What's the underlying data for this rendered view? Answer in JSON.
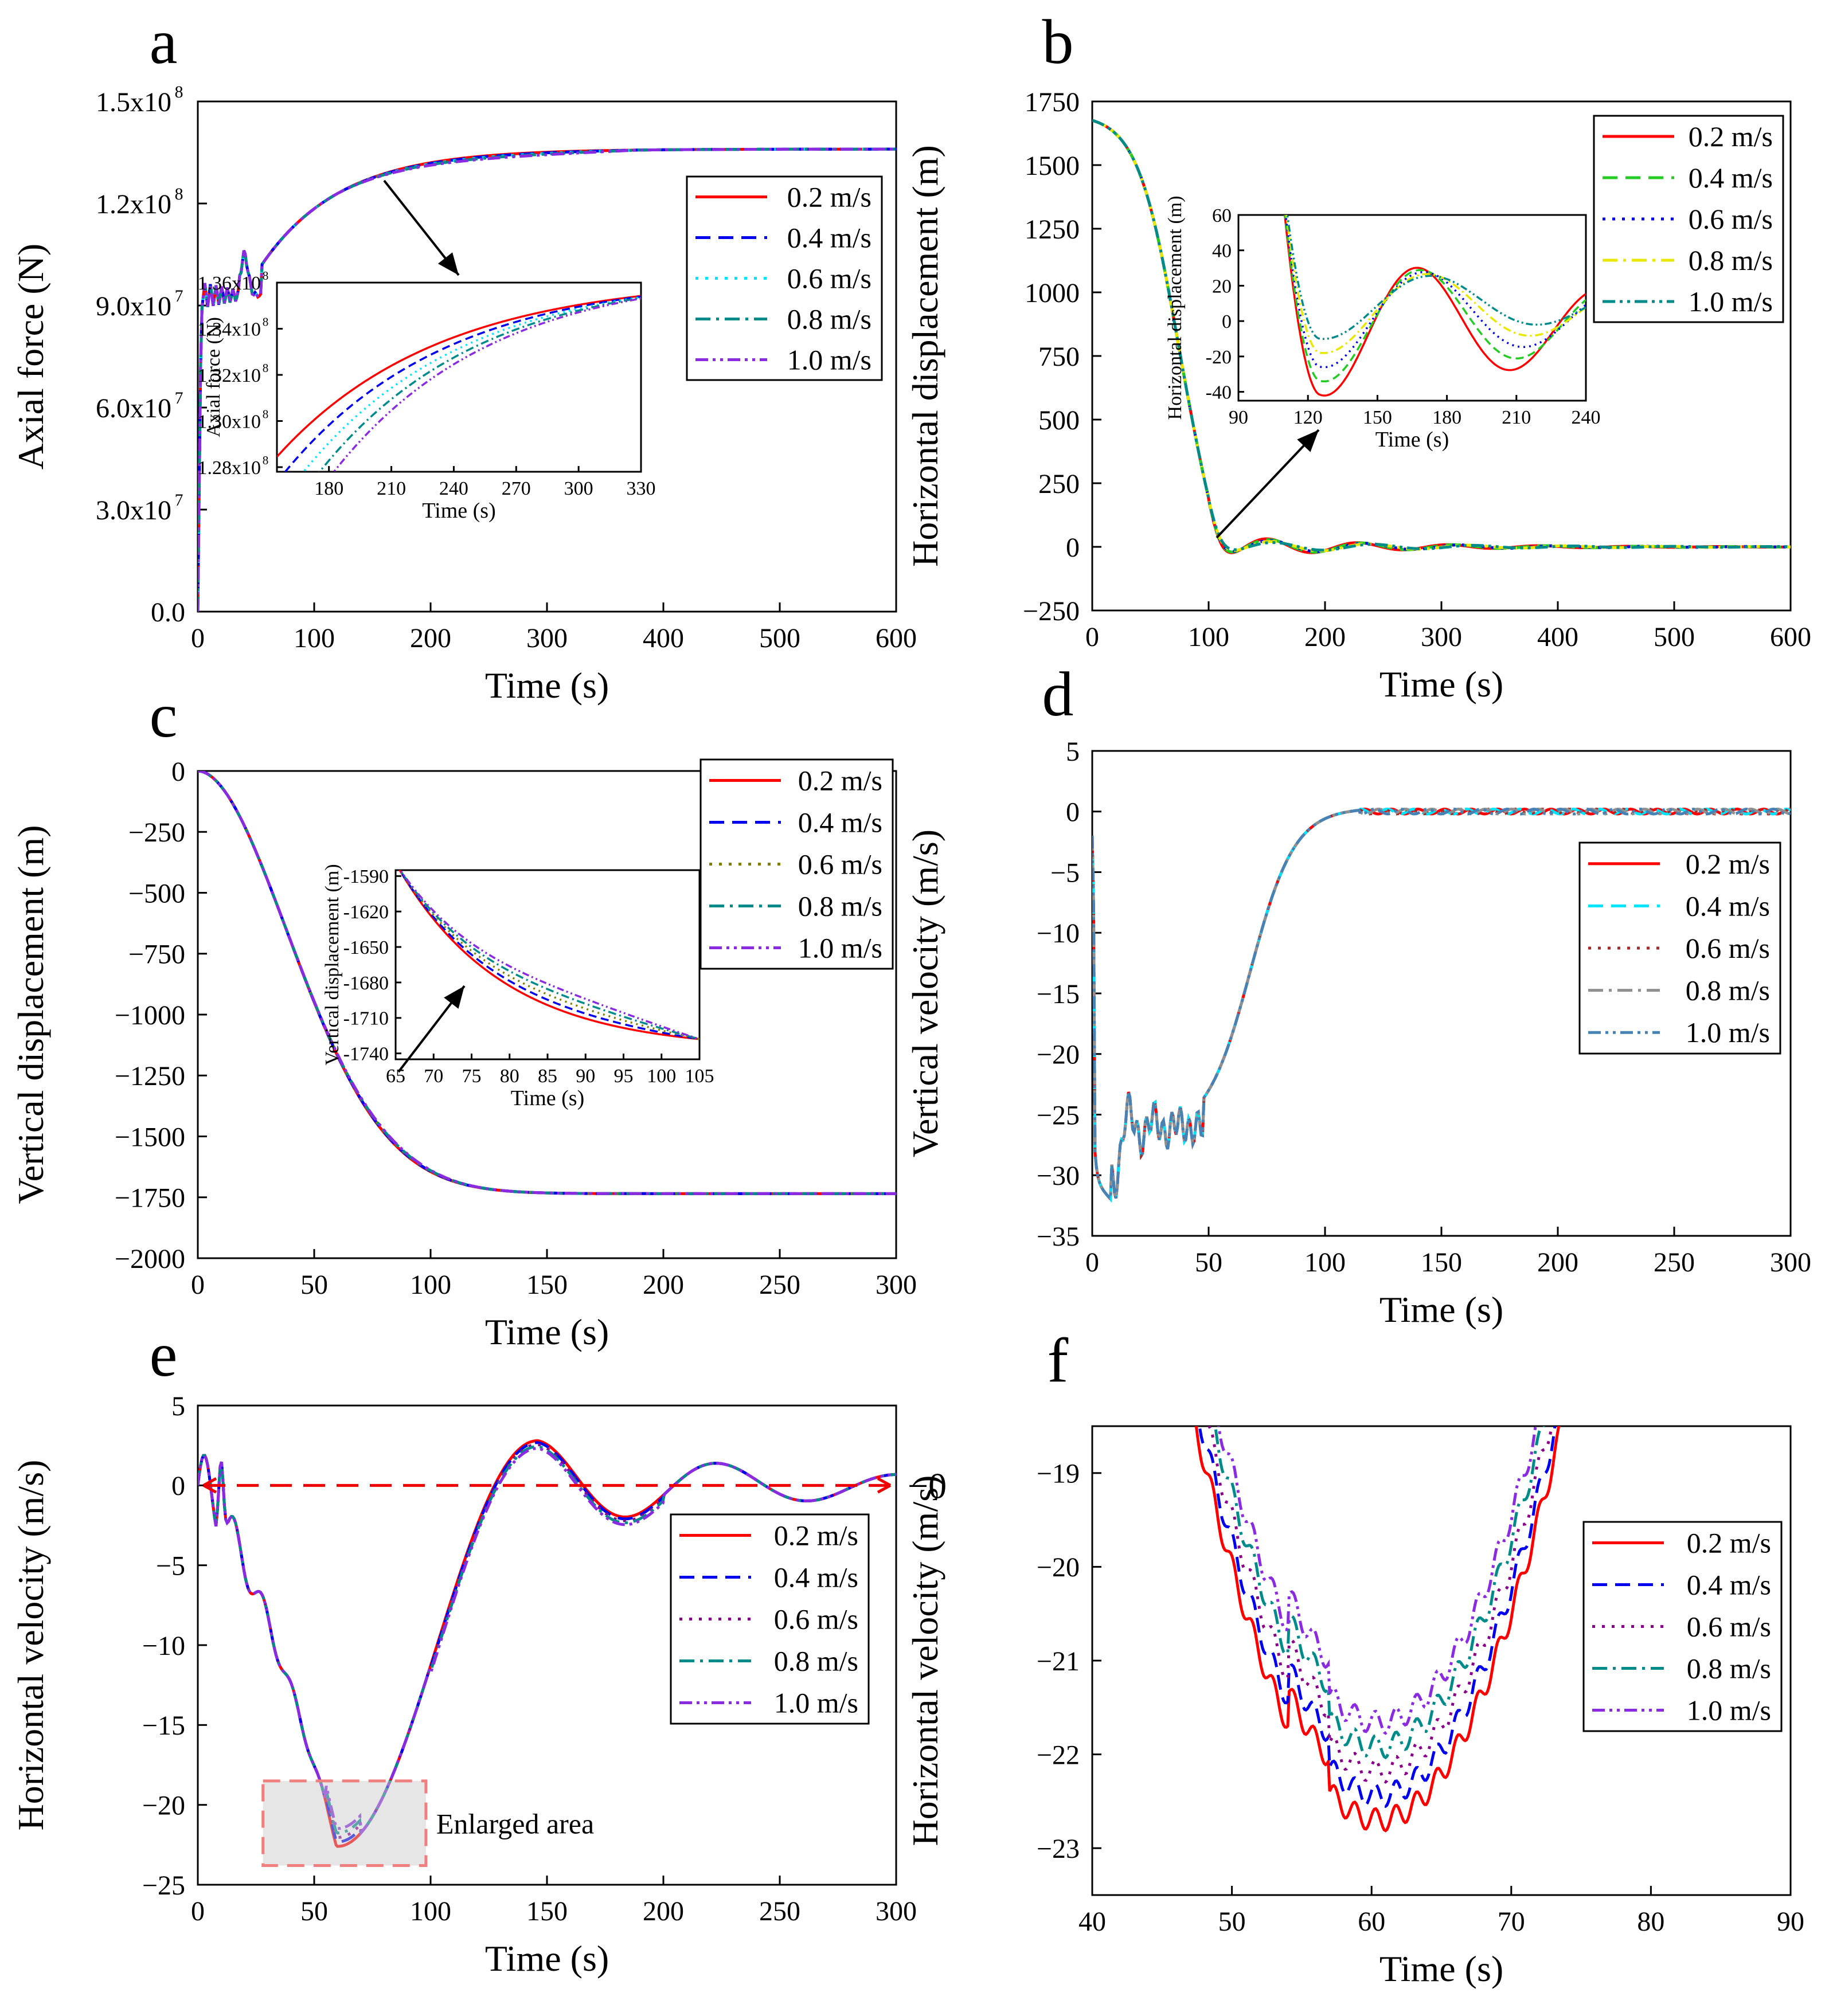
{
  "chart_data": [
    {
      "id": "a",
      "panel_label": "a",
      "type": "line",
      "title": "",
      "xlabel": "Time (s)",
      "ylabel": "Axial force (N)",
      "xlim": [
        0,
        600
      ],
      "ylim": [
        0,
        150000000
      ],
      "x_ticks": [
        0,
        100,
        200,
        300,
        400,
        500,
        600
      ],
      "y_ticks": [
        0,
        30000000,
        60000000,
        90000000,
        120000000,
        150000000
      ],
      "y_tick_labels": [
        "0.0",
        "3.0x10",
        "6.0x10",
        "9.0x10",
        "1.2x10",
        "1.5x10"
      ],
      "y_tick_exps": [
        "",
        "7",
        "7",
        "7",
        "8",
        "8"
      ],
      "legend": {
        "position": "right",
        "entries": [
          "0.2 m/s",
          "0.4 m/s",
          "0.6 m/s",
          "0.8 m/s",
          "1.0 m/s"
        ]
      },
      "series": [
        {
          "name": "0.2 m/s",
          "color": "#ff0000",
          "dash": "solid"
        },
        {
          "name": "0.4 m/s",
          "color": "#0000ee",
          "dash": "dash"
        },
        {
          "name": "0.6 m/s",
          "color": "#00e5ff",
          "dash": "dot"
        },
        {
          "name": "0.8 m/s",
          "color": "#008b8b",
          "dash": "dashdot"
        },
        {
          "name": "1.0 m/s",
          "color": "#8a2be2",
          "dash": "dashdotdot"
        }
      ],
      "inset": {
        "xlabel": "Time (s)",
        "ylabel": "Axial force (N)",
        "xlim": [
          155,
          330
        ],
        "ylim": [
          127800000,
          136000000
        ],
        "x_ticks": [
          180,
          210,
          240,
          270,
          300,
          330
        ],
        "y_ticks": [
          128000000,
          130000000,
          132000000,
          134000000,
          136000000
        ],
        "y_tick_labels": [
          "1.28x10",
          "1.30x10",
          "1.32x10",
          "1.34x10",
          "1.36x10"
        ],
        "y_tick_exps": [
          "8",
          "8",
          "8",
          "8",
          "8"
        ]
      }
    },
    {
      "id": "b",
      "panel_label": "b",
      "type": "line",
      "title": "",
      "xlabel": "Time (s)",
      "ylabel": "Horizontal displacement (m)",
      "xlim": [
        0,
        600
      ],
      "ylim": [
        -250,
        1750
      ],
      "x_ticks": [
        0,
        100,
        200,
        300,
        400,
        500,
        600
      ],
      "y_ticks": [
        -250,
        0,
        250,
        500,
        750,
        1000,
        1250,
        1500,
        1750
      ],
      "y_tick_labels": [
        "−250",
        "0",
        "250",
        "500",
        "750",
        "1000",
        "1250",
        "1500",
        "1750"
      ],
      "legend": {
        "position": "top-right",
        "entries": [
          "0.2 m/s",
          "0.4 m/s",
          "0.6 m/s",
          "0.8 m/s",
          "1.0 m/s"
        ]
      },
      "series": [
        {
          "name": "0.2 m/s",
          "color": "#ff0000",
          "dash": "solid"
        },
        {
          "name": "0.4 m/s",
          "color": "#22cc22",
          "dash": "dash"
        },
        {
          "name": "0.6 m/s",
          "color": "#0000ee",
          "dash": "dot"
        },
        {
          "name": "0.8 m/s",
          "color": "#e8e800",
          "dash": "dashdot"
        },
        {
          "name": "1.0 m/s",
          "color": "#008b8b",
          "dash": "dashdotdot"
        }
      ],
      "inset": {
        "xlabel": "Time (s)",
        "ylabel": "Horizontal displacement (m)",
        "xlim": [
          90,
          240
        ],
        "ylim": [
          -45,
          60
        ],
        "x_ticks": [
          90,
          120,
          150,
          180,
          210,
          240
        ],
        "y_ticks": [
          -40,
          -20,
          0,
          20,
          40,
          60
        ],
        "y_tick_labels": [
          "-40",
          "-20",
          "0",
          "20",
          "40",
          "60"
        ]
      }
    },
    {
      "id": "c",
      "panel_label": "c",
      "type": "line",
      "title": "",
      "xlabel": "Time (s)",
      "ylabel": "Vertical displacement (m)",
      "xlim": [
        0,
        300
      ],
      "ylim": [
        -2000,
        0
      ],
      "x_ticks": [
        0,
        50,
        100,
        150,
        200,
        250,
        300
      ],
      "y_ticks": [
        -2000,
        -1750,
        -1500,
        -1250,
        -1000,
        -750,
        -500,
        -250,
        0
      ],
      "y_tick_labels": [
        "−2000",
        "−1750",
        "−1500",
        "−1250",
        "−1000",
        "−750",
        "−500",
        "−250",
        "0"
      ],
      "legend": {
        "position": "top-right",
        "entries": [
          "0.2 m/s",
          "0.4 m/s",
          "0.6 m/s",
          "0.8 m/s",
          "1.0 m/s"
        ]
      },
      "series": [
        {
          "name": "0.2 m/s",
          "color": "#ff0000",
          "dash": "solid"
        },
        {
          "name": "0.4 m/s",
          "color": "#0000ee",
          "dash": "dash"
        },
        {
          "name": "0.6 m/s",
          "color": "#808000",
          "dash": "dot"
        },
        {
          "name": "0.8 m/s",
          "color": "#008b8b",
          "dash": "dashdot"
        },
        {
          "name": "1.0 m/s",
          "color": "#8a2be2",
          "dash": "dashdotdot"
        }
      ],
      "inset": {
        "xlabel": "Time (s)",
        "ylabel": "Vertical displacement (m)",
        "xlim": [
          65,
          105
        ],
        "ylim": [
          -1745,
          -1585
        ],
        "x_ticks": [
          65,
          70,
          75,
          80,
          85,
          90,
          95,
          100,
          105
        ],
        "y_ticks": [
          -1740,
          -1710,
          -1680,
          -1650,
          -1620,
          -1590
        ],
        "y_tick_labels": [
          "-1740",
          "-1710",
          "-1680",
          "-1650",
          "-1620",
          "-1590"
        ]
      }
    },
    {
      "id": "d",
      "panel_label": "d",
      "type": "line",
      "title": "",
      "xlabel": "Time (s)",
      "ylabel": "Vertical velocity (m/s)",
      "xlim": [
        0,
        300
      ],
      "ylim": [
        -35,
        5
      ],
      "x_ticks": [
        0,
        50,
        100,
        150,
        200,
        250,
        300
      ],
      "y_ticks": [
        -35,
        -30,
        -25,
        -20,
        -15,
        -10,
        -5,
        0,
        5
      ],
      "y_tick_labels": [
        "−35",
        "−30",
        "−25",
        "−20",
        "−15",
        "−10",
        "−5",
        "0",
        "5"
      ],
      "legend": {
        "position": "right",
        "entries": [
          "0.2 m/s",
          "0.4 m/s",
          "0.6 m/s",
          "0.8 m/s",
          "1.0 m/s"
        ]
      },
      "series": [
        {
          "name": "0.2 m/s",
          "color": "#ff0000",
          "dash": "solid"
        },
        {
          "name": "0.4 m/s",
          "color": "#00e5ff",
          "dash": "dash"
        },
        {
          "name": "0.6 m/s",
          "color": "#a52a2a",
          "dash": "dot"
        },
        {
          "name": "0.8 m/s",
          "color": "#909090",
          "dash": "dashdot"
        },
        {
          "name": "1.0 m/s",
          "color": "#4682b4",
          "dash": "dashdotdot"
        }
      ]
    },
    {
      "id": "e",
      "panel_label": "e",
      "type": "line",
      "title": "",
      "xlabel": "Time (s)",
      "ylabel": "Horizontal velocity (m/s)",
      "xlim": [
        0,
        300
      ],
      "ylim": [
        -25,
        5
      ],
      "x_ticks": [
        0,
        50,
        100,
        150,
        200,
        250,
        300
      ],
      "y_ticks": [
        -25,
        -20,
        -15,
        -10,
        -5,
        0,
        5
      ],
      "y_tick_labels": [
        "−25",
        "−20",
        "−15",
        "−10",
        "−5",
        "0",
        "5"
      ],
      "legend": {
        "position": "right",
        "entries": [
          "0.2 m/s",
          "0.4 m/s",
          "0.6 m/s",
          "0.8 m/s",
          "1.0 m/s"
        ]
      },
      "reference_line": {
        "y": 0,
        "label": "−0"
      },
      "annotation": {
        "text": "Enlarged area",
        "x_range": [
          28,
          98
        ],
        "y_range": [
          -23.8,
          -18.5
        ]
      },
      "series": [
        {
          "name": "0.2 m/s",
          "color": "#ff0000",
          "dash": "solid"
        },
        {
          "name": "0.4 m/s",
          "color": "#0000ee",
          "dash": "dash"
        },
        {
          "name": "0.6 m/s",
          "color": "#8b008b",
          "dash": "dot"
        },
        {
          "name": "0.8 m/s",
          "color": "#008b8b",
          "dash": "dashdot"
        },
        {
          "name": "1.0 m/s",
          "color": "#8a2be2",
          "dash": "dashdotdot"
        }
      ]
    },
    {
      "id": "f",
      "panel_label": "f",
      "type": "line",
      "title": "",
      "xlabel": "Time (s)",
      "ylabel": "Horizontal velocity (m/s)",
      "xlim": [
        40,
        90
      ],
      "ylim": [
        -23.5,
        -18.5
      ],
      "x_ticks": [
        40,
        50,
        60,
        70,
        80,
        90
      ],
      "y_ticks": [
        -23,
        -22,
        -21,
        -20,
        -19
      ],
      "y_tick_labels": [
        "−23",
        "−22",
        "−21",
        "−20",
        "−19"
      ],
      "legend": {
        "position": "right",
        "entries": [
          "0.2 m/s",
          "0.4 m/s",
          "0.6 m/s",
          "0.8 m/s",
          "1.0 m/s"
        ]
      },
      "series": [
        {
          "name": "0.2 m/s",
          "color": "#ff0000",
          "dash": "solid"
        },
        {
          "name": "0.4 m/s",
          "color": "#0000ee",
          "dash": "dash"
        },
        {
          "name": "0.6 m/s",
          "color": "#8b008b",
          "dash": "dot"
        },
        {
          "name": "0.8 m/s",
          "color": "#008b8b",
          "dash": "dashdot"
        },
        {
          "name": "1.0 m/s",
          "color": "#8a2be2",
          "dash": "dashdotdot"
        }
      ]
    }
  ]
}
